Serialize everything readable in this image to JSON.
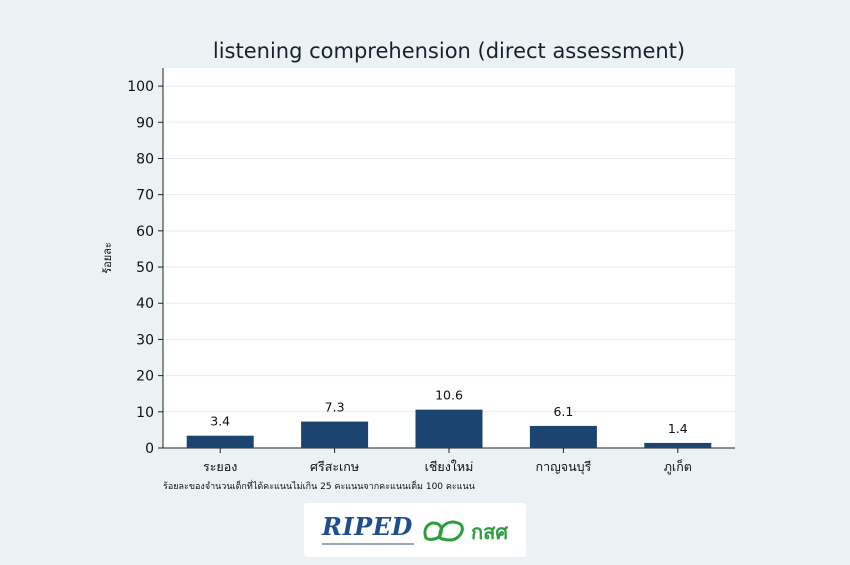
{
  "chart_data": {
    "type": "bar",
    "title": "listening comprehension (direct assessment)",
    "ylabel": "ร้อยละ",
    "note": "ร้อยละของจำนวนเด็กที่ได้คะแนนไม่เกิน 25 คะแนนจากคะแนนเต็ม 100 คะแนน",
    "categories": [
      "ระยอง",
      "ศรีสะเกษ",
      "เชียงใหม่",
      "กาญจนบุรี",
      "ภูเก็ต"
    ],
    "values": [
      3.4,
      7.3,
      10.6,
      6.1,
      1.4
    ],
    "value_labels": [
      "3.4",
      "7.3",
      "10.6",
      "6.1",
      "1.4"
    ],
    "ylim": [
      0,
      105
    ],
    "yticks": [
      0,
      10,
      20,
      30,
      40,
      50,
      60,
      70,
      80,
      90,
      100
    ],
    "bar_color": "#1b4470",
    "grid": true,
    "legend": "none"
  },
  "logos": {
    "riped": "RIPED",
    "kss": "กสศ"
  }
}
